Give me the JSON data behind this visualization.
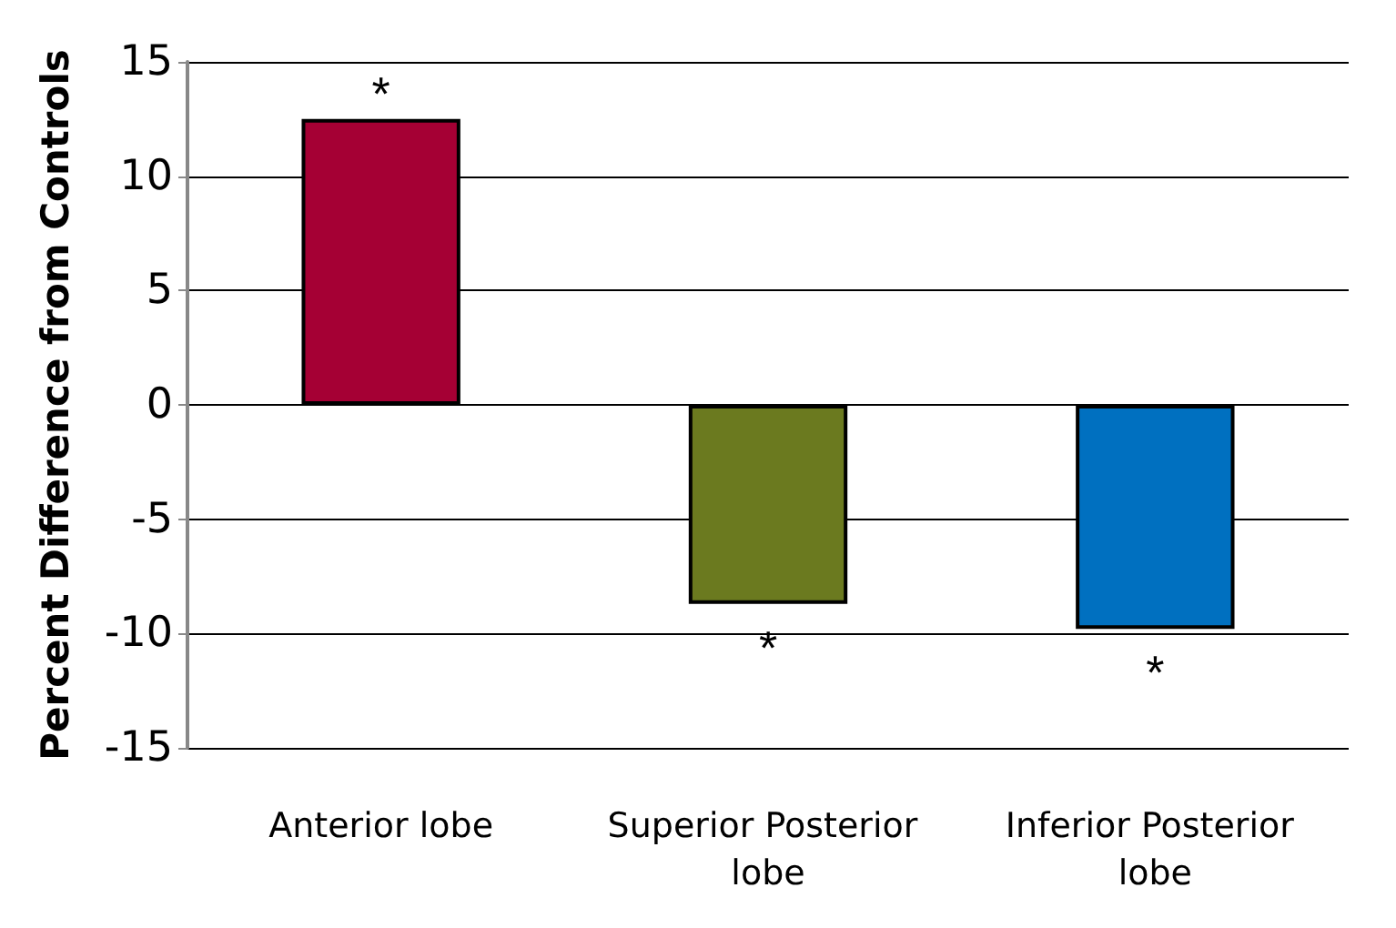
{
  "chart_data": {
    "type": "bar",
    "ylabel": "Percent Difference from Controls",
    "categories": [
      "Anterior lobe",
      "Superior Posterior lobe",
      "Inferior Posterior lobe"
    ],
    "values": [
      12.5,
      -8.7,
      -9.8
    ],
    "colors": [
      "#a50034",
      "#6b7a1f",
      "#0070c0"
    ],
    "ylim": [
      -15,
      15
    ],
    "yticks": [
      -15,
      -10,
      -5,
      0,
      5,
      10,
      15
    ],
    "grid": "y",
    "annotations": [
      {
        "text": "*",
        "x": "Anterior lobe",
        "y": 12.5
      },
      {
        "text": "*",
        "x": "Superior Posterior lobe",
        "y": -8.7
      },
      {
        "text": "*",
        "x": "Inferior Posterior lobe",
        "y": -9.8
      }
    ]
  }
}
